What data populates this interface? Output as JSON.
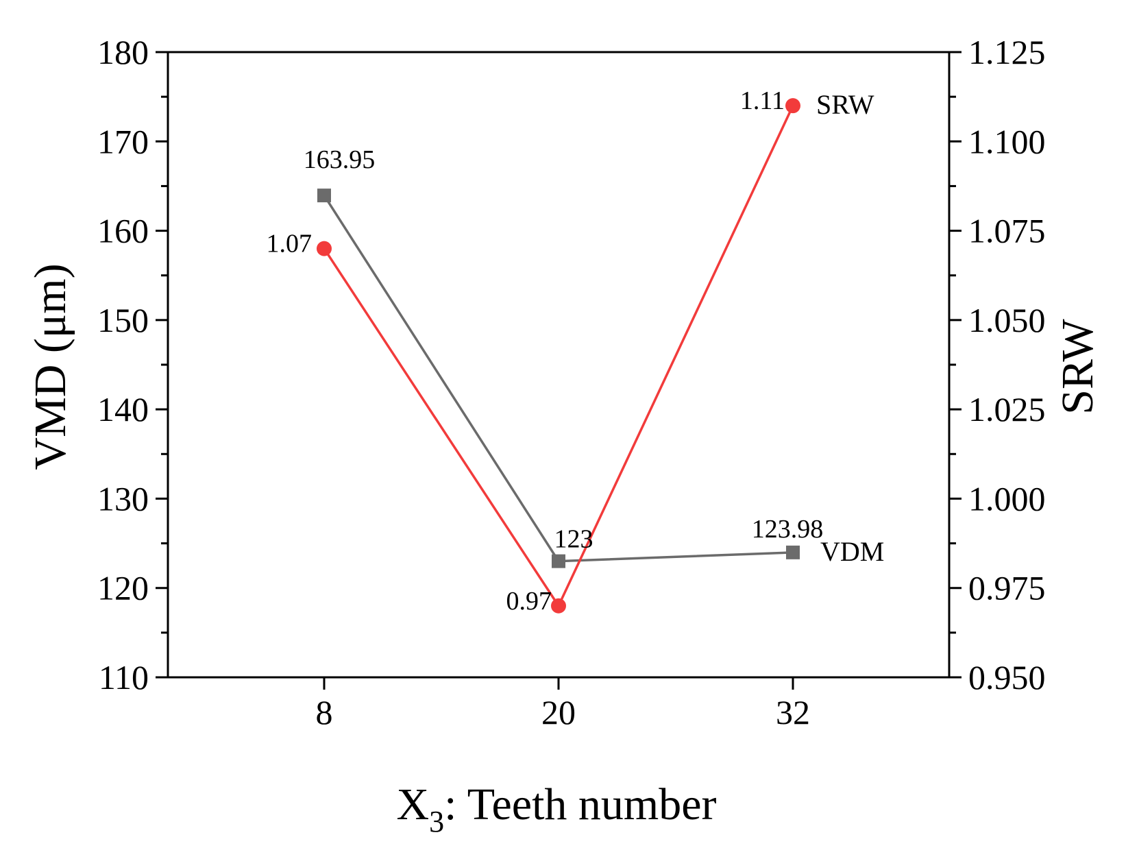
{
  "chart_data": {
    "type": "line",
    "x": [
      8,
      20,
      32
    ],
    "x_tick_labels": [
      "8",
      "20",
      "32"
    ],
    "xlabel_main": "X",
    "xlabel_sub": "3",
    "xlabel_rest": ": Teeth number",
    "ylabel_left": "VMD (μm)",
    "ylabel_right": "SRW",
    "ylim_left": [
      110,
      180
    ],
    "ylim_right": [
      0.95,
      1.125
    ],
    "y_left_ticks": [
      "110",
      "120",
      "130",
      "140",
      "150",
      "160",
      "170",
      "180"
    ],
    "y_right_ticks": [
      "0.950",
      "0.975",
      "1.000",
      "1.025",
      "1.050",
      "1.075",
      "1.100",
      "1.125"
    ],
    "series": [
      {
        "name": "VDM",
        "axis": "left",
        "marker": "square",
        "color": "#6b6b6b",
        "values": [
          163.95,
          123,
          123.98
        ],
        "labels": [
          "163.95",
          "123",
          "123.98"
        ]
      },
      {
        "name": "SRW",
        "axis": "right",
        "marker": "circle",
        "color": "#f23b3b",
        "values": [
          1.07,
          0.97,
          1.11
        ],
        "labels": [
          "1.07",
          "0.97",
          "1.11"
        ]
      }
    ]
  }
}
